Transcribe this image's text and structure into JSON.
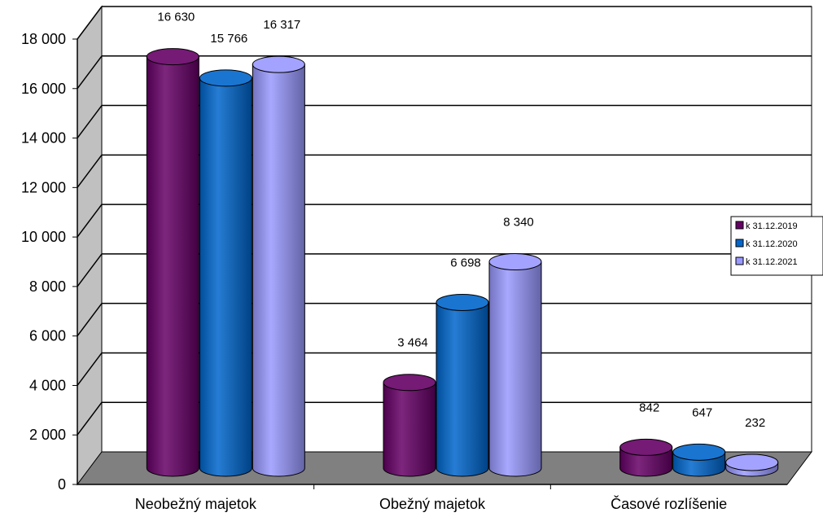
{
  "chart_data": {
    "type": "bar",
    "style": "3d-cylinder",
    "categories": [
      "Neobežný majetok",
      "Obežný majetok",
      "Časové rozlíšenie"
    ],
    "series": [
      {
        "name": "k 31.12.2019",
        "color": "#660066",
        "values": [
          16630,
          3464,
          842
        ]
      },
      {
        "name": "k 31.12.2020",
        "color": "#0066cc",
        "values": [
          15766,
          6698,
          647
        ]
      },
      {
        "name": "k 31.12.2021",
        "color": "#9999ff",
        "values": [
          16317,
          8340,
          232
        ]
      }
    ],
    "data_labels": [
      [
        "16 630",
        "3 464",
        "842"
      ],
      [
        "15 766",
        "6 698",
        "647"
      ],
      [
        "16 317",
        "8 340",
        "232"
      ]
    ],
    "ylim": [
      0,
      18000
    ],
    "ytick_labels": [
      "0",
      "2 000",
      "4 000",
      "6 000",
      "8 000",
      "10 000",
      "12 000",
      "14 000",
      "16 000",
      "18 000"
    ],
    "grid": true,
    "legend_position": "right",
    "wall_color": "#c0c0c0",
    "floor_color": "#808080"
  }
}
